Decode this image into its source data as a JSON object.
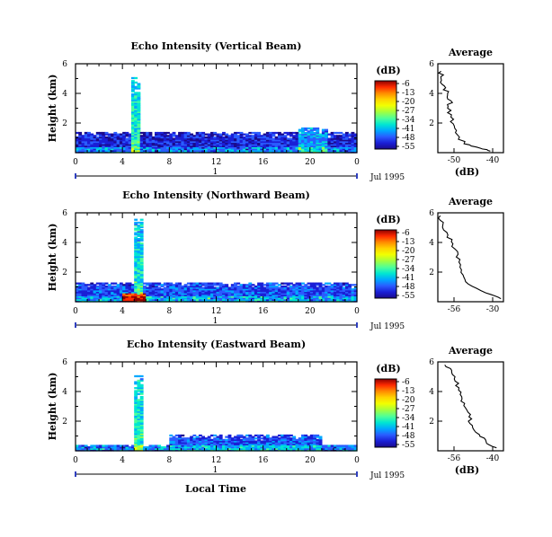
{
  "panels": [
    {
      "title": "Echo Intensity (Vertical Beam)",
      "ylabel": "Height (km)",
      "yticks": [
        "6",
        "4",
        "2"
      ],
      "xticks": [
        "0",
        "4",
        "8",
        "12",
        "16",
        "20",
        "0"
      ],
      "day_label": "1",
      "date_label": "Jul 1995",
      "colorbar": {
        "unit": "(dB)",
        "labels": [
          "-6",
          "-13",
          "-20",
          "-27",
          "-34",
          "-41",
          "-48",
          "-55"
        ]
      },
      "profile": {
        "title": "Average",
        "xticks": [
          "-50",
          "-40"
        ],
        "xlabel": "(dB)",
        "yticks": [
          "6",
          "4",
          "2"
        ]
      }
    },
    {
      "title": "Echo Intensity (Northward Beam)",
      "ylabel": "Height (km)",
      "yticks": [
        "6",
        "4",
        "2"
      ],
      "xticks": [
        "0",
        "4",
        "8",
        "12",
        "16",
        "20",
        "0"
      ],
      "day_label": "1",
      "date_label": "Jul 1995",
      "colorbar": {
        "unit": "(dB)",
        "labels": [
          "-6",
          "-13",
          "-20",
          "-27",
          "-34",
          "-41",
          "-48",
          "-55"
        ]
      },
      "profile": {
        "title": "Average",
        "xticks": [
          "-56",
          "-30"
        ],
        "xlabel": "",
        "yticks": [
          "6",
          "4",
          "2"
        ]
      }
    },
    {
      "title": "Echo Intensity (Eastward Beam)",
      "ylabel": "Height (km)",
      "yticks": [
        "6",
        "4",
        "2"
      ],
      "xticks": [
        "0",
        "4",
        "8",
        "12",
        "16",
        "20",
        "0"
      ],
      "day_label": "1",
      "date_label": "Jul 1995",
      "colorbar": {
        "unit": "(dB)",
        "labels": [
          "-6",
          "-13",
          "-20",
          "-27",
          "-34",
          "-41",
          "-48",
          "-55"
        ]
      },
      "profile": {
        "title": "Average",
        "xticks": [
          "-56",
          "-40"
        ],
        "xlabel": "(dB)",
        "yticks": [
          "6",
          "4",
          "2"
        ]
      }
    }
  ],
  "xlabel": "Local Time",
  "colorbar_palette": [
    "#8b0000",
    "#ff2a00",
    "#ff8a00",
    "#ffd200",
    "#f2ff00",
    "#a8ff3a",
    "#4dff9a",
    "#00e6d2",
    "#00a8ff",
    "#2a5cff",
    "#1a1fd6",
    "#1a0a8c"
  ],
  "chart_data": [
    {
      "type": "heatmap",
      "title": "Echo Intensity (Vertical Beam)",
      "xlabel": "",
      "ylabel": "Height (km)",
      "xlim": [
        0,
        24
      ],
      "ylim": [
        0,
        6
      ],
      "units": "dB",
      "color_range": [
        -55,
        -6
      ],
      "features": [
        {
          "x": [
            4.7,
            5.5
          ],
          "y": [
            0,
            5.0
          ],
          "value": -34
        },
        {
          "x": [
            0,
            24
          ],
          "y": [
            0,
            1.4
          ],
          "value": -48
        },
        {
          "x": [
            18.8,
            21.5
          ],
          "y": [
            0,
            1.7
          ],
          "value": -41
        }
      ],
      "average_profile": {
        "xlim": [
          -55,
          -35
        ],
        "ylim": [
          0,
          6
        ],
        "x": [
          -39,
          -42,
          -47,
          -49,
          -50,
          -51,
          -52,
          -51,
          -52,
          -53,
          -54,
          -54
        ],
        "y": [
          0.1,
          0.3,
          0.6,
          1.2,
          1.8,
          2.4,
          3.0,
          3.5,
          4.0,
          4.5,
          5.0,
          5.5
        ]
      }
    },
    {
      "type": "heatmap",
      "title": "Echo Intensity (Northward Beam)",
      "xlabel": "",
      "ylabel": "Height (km)",
      "xlim": [
        0,
        24
      ],
      "ylim": [
        0,
        6
      ],
      "units": "dB",
      "color_range": [
        -55,
        -6
      ],
      "features": [
        {
          "x": [
            4.8,
            5.6
          ],
          "y": [
            0,
            5.5
          ],
          "value": -34
        },
        {
          "x": [
            0,
            24
          ],
          "y": [
            0,
            1.3
          ],
          "value": -45
        },
        {
          "x": [
            4.0,
            6.0
          ],
          "y": [
            0,
            0.6
          ],
          "value": -13
        }
      ],
      "average_profile": {
        "xlim": [
          -56,
          -30
        ],
        "ylim": [
          0,
          6
        ],
        "x": [
          -31,
          -37,
          -44,
          -46,
          -47,
          -48,
          -50,
          -52,
          -54,
          -55
        ],
        "y": [
          0.2,
          0.6,
          1.2,
          1.8,
          2.5,
          3.2,
          3.9,
          4.5,
          5.2,
          5.8
        ]
      }
    },
    {
      "type": "heatmap",
      "title": "Echo Intensity (Eastward Beam)",
      "xlabel": "Local Time",
      "ylabel": "Height (km)",
      "xlim": [
        0,
        24
      ],
      "ylim": [
        0,
        6
      ],
      "units": "dB",
      "color_range": [
        -55,
        -6
      ],
      "features": [
        {
          "x": [
            4.8,
            5.7
          ],
          "y": [
            0,
            5.1
          ],
          "value": -34
        },
        {
          "x": [
            0,
            24
          ],
          "y": [
            0,
            0.4
          ],
          "value": -48
        },
        {
          "x": [
            8.0,
            21.0
          ],
          "y": [
            0,
            1.0
          ],
          "value": -45
        }
      ],
      "average_profile": {
        "xlim": [
          -57,
          -38
        ],
        "ylim": [
          0,
          6
        ],
        "x": [
          -40,
          -43,
          -45,
          -47,
          -48,
          -49,
          -50,
          -51,
          -52,
          -53,
          -55
        ],
        "y": [
          0.2,
          0.6,
          1.1,
          1.7,
          2.3,
          2.9,
          3.5,
          4.1,
          4.7,
          5.3,
          5.8
        ]
      }
    }
  ]
}
